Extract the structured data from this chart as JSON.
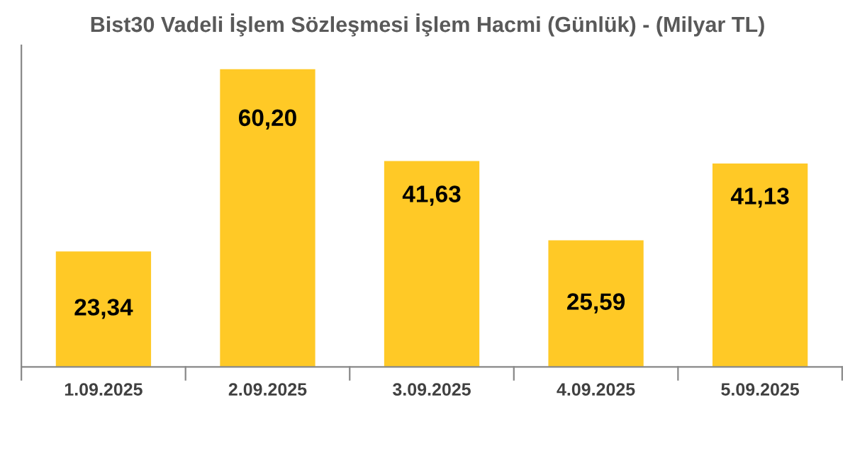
{
  "chart_data": {
    "type": "bar",
    "title": "Bist30 Vadeli İşlem Sözleşmesi İşlem Hacmi (Günlük) - (Milyar TL)",
    "categories": [
      "1.09.2025",
      "2.09.2025",
      "3.09.2025",
      "4.09.2025",
      "5.09.2025"
    ],
    "values": [
      23.34,
      60.2,
      41.63,
      25.59,
      41.13
    ],
    "value_labels": [
      "23,34",
      "60,20",
      "41,63",
      "25,59",
      "41,13"
    ],
    "color": "#ffc926",
    "grid": false
  }
}
